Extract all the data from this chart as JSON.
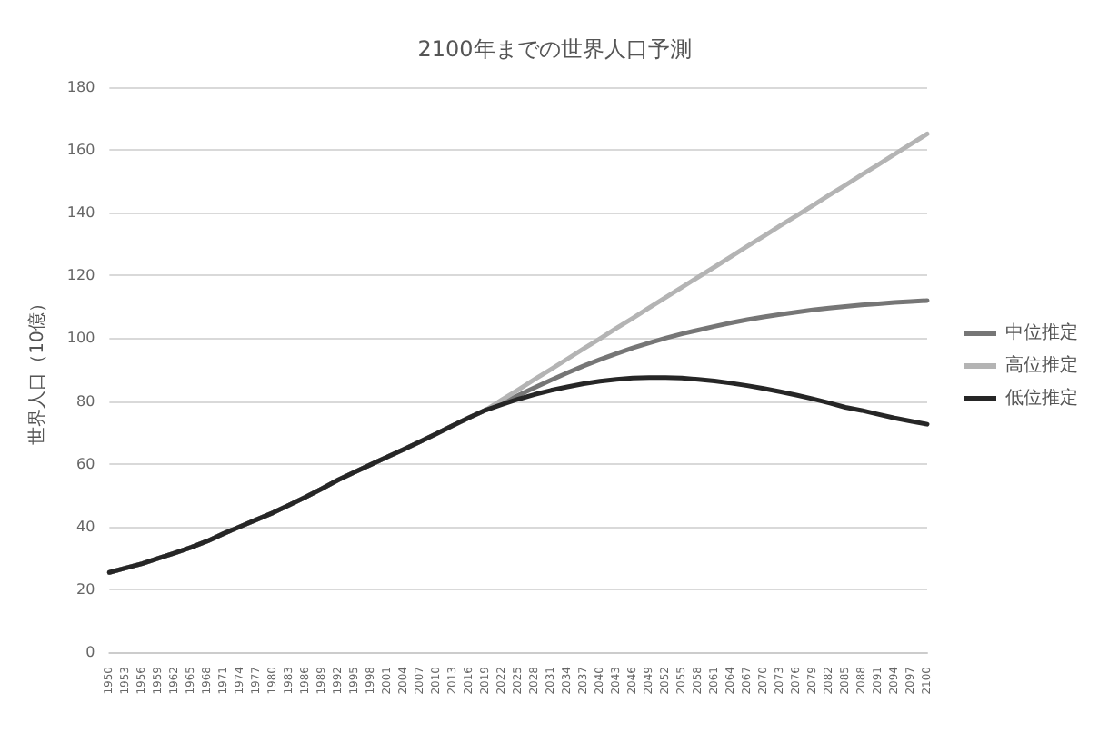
{
  "chart_data": {
    "type": "line",
    "title": "2100年までの世界人口予測",
    "ylabel": "世界人口（10億）",
    "categories": [
      "1950",
      "1953",
      "1956",
      "1959",
      "1962",
      "1965",
      "1968",
      "1971",
      "1974",
      "1977",
      "1980",
      "1983",
      "1986",
      "1989",
      "1992",
      "1995",
      "1998",
      "2001",
      "2004",
      "2007",
      "2010",
      "2013",
      "2016",
      "2019",
      "2022",
      "2025",
      "2028",
      "2031",
      "2034",
      "2037",
      "2040",
      "2043",
      "2046",
      "2049",
      "2052",
      "2055",
      "2058",
      "2061",
      "2064",
      "2067",
      "2070",
      "2073",
      "2076",
      "2079",
      "2082",
      "2085",
      "2088",
      "2091",
      "2094",
      "2097",
      "2100"
    ],
    "series": [
      {
        "name": "中位推定",
        "color": "#767676",
        "values": [
          25.4,
          26.8,
          28.2,
          29.9,
          31.6,
          33.4,
          35.4,
          37.8,
          40.0,
          42.2,
          44.4,
          46.9,
          49.4,
          52.1,
          54.9,
          57.4,
          59.8,
          62.2,
          64.6,
          67.1,
          69.6,
          72.2,
          74.7,
          77.1,
          79.4,
          81.8,
          84.3,
          86.7,
          89.0,
          91.2,
          93.2,
          95.1,
          96.9,
          98.5,
          100.0,
          101.4,
          102.6,
          103.8,
          104.9,
          105.9,
          106.8,
          107.6,
          108.3,
          109.0,
          109.6,
          110.1,
          110.6,
          111.0,
          111.4,
          111.7,
          112.0
        ]
      },
      {
        "name": "高位推定",
        "color": "#b4b4b4",
        "values": [
          25.4,
          26.8,
          28.2,
          29.9,
          31.6,
          33.4,
          35.4,
          37.8,
          40.0,
          42.2,
          44.4,
          46.9,
          49.4,
          52.1,
          54.9,
          57.4,
          59.8,
          62.2,
          64.6,
          67.1,
          69.6,
          72.2,
          74.7,
          77.1,
          80.4,
          83.6,
          86.9,
          90.1,
          93.4,
          96.7,
          99.9,
          103.2,
          106.4,
          109.7,
          113.0,
          116.2,
          119.5,
          122.7,
          126.0,
          129.3,
          132.5,
          135.8,
          139.0,
          142.3,
          145.6,
          148.8,
          152.1,
          155.3,
          158.6,
          161.9,
          165.1
        ]
      },
      {
        "name": "低位推定",
        "color": "#262626",
        "values": [
          25.4,
          26.8,
          28.2,
          29.9,
          31.6,
          33.4,
          35.4,
          37.8,
          40.0,
          42.2,
          44.4,
          46.9,
          49.4,
          52.1,
          54.9,
          57.4,
          59.8,
          62.2,
          64.6,
          67.1,
          69.6,
          72.2,
          74.7,
          77.1,
          78.9,
          80.6,
          82.1,
          83.4,
          84.5,
          85.5,
          86.3,
          86.9,
          87.3,
          87.5,
          87.5,
          87.3,
          86.9,
          86.4,
          85.7,
          84.9,
          84.0,
          83.0,
          81.9,
          80.7,
          79.4,
          78.0,
          77.0,
          75.8,
          74.6,
          73.6,
          72.6
        ]
      }
    ],
    "ylim": [
      0,
      180
    ],
    "yticks": [
      0,
      20,
      40,
      60,
      80,
      100,
      120,
      140,
      160,
      180
    ],
    "grid": "y",
    "legend": "right",
    "marker": "none",
    "line_style": "solid"
  }
}
